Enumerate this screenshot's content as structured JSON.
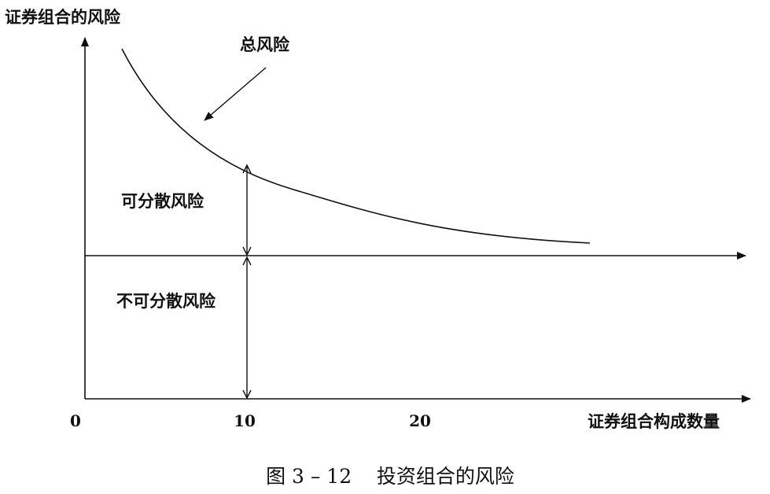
{
  "y_axis_label": "证券组合的风险",
  "x_axis_label": "证券组合构成数量",
  "x_ticks": [
    "0",
    "10",
    "20"
  ],
  "total_risk_label": "总风险",
  "diversifiable_risk_label": "可分散风险",
  "nondiversifiable_risk_label": "不可分散风险",
  "caption": "图 3 – 12    投资组合的风险"
}
